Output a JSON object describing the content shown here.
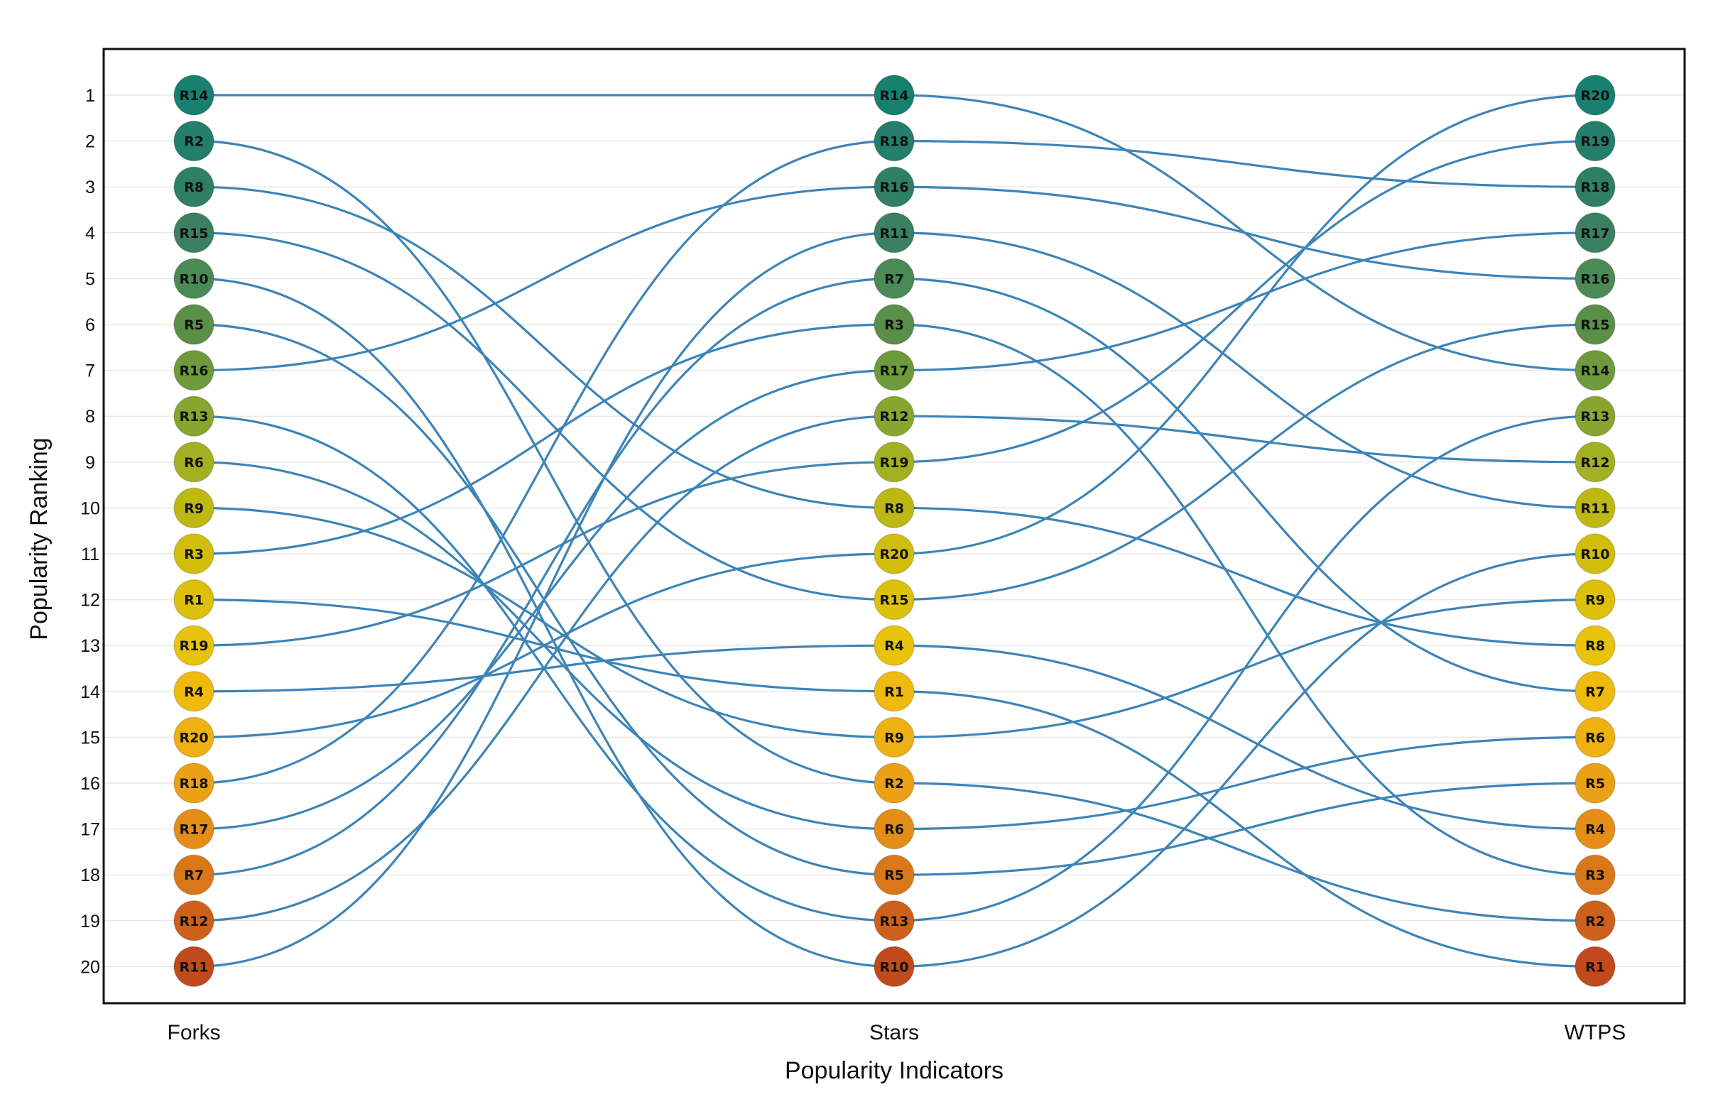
{
  "chart_data": {
    "type": "bump",
    "title": "",
    "xlabel": "Popularity Indicators",
    "ylabel": "Popularity Ranking",
    "categories": [
      "Forks",
      "Stars",
      "WTPS"
    ],
    "yticks": [
      "1",
      "2",
      "3",
      "4",
      "5",
      "6",
      "7",
      "8",
      "9",
      "10",
      "11",
      "12",
      "13",
      "14",
      "15",
      "16",
      "17",
      "18",
      "19",
      "20"
    ],
    "ylim": [
      1,
      20
    ],
    "y_reversed": true,
    "grid": true,
    "legend": "none",
    "rankings": {
      "Forks": [
        "R14",
        "R2",
        "R8",
        "R15",
        "R10",
        "R5",
        "R16",
        "R13",
        "R6",
        "R9",
        "R3",
        "R1",
        "R19",
        "R4",
        "R20",
        "R18",
        "R17",
        "R7",
        "R12",
        "R11"
      ],
      "Stars": [
        "R14",
        "R18",
        "R16",
        "R11",
        "R7",
        "R3",
        "R17",
        "R12",
        "R19",
        "R8",
        "R20",
        "R15",
        "R4",
        "R1",
        "R9",
        "R2",
        "R6",
        "R5",
        "R13",
        "R10"
      ],
      "WTPS": [
        "R20",
        "R19",
        "R18",
        "R17",
        "R16",
        "R15",
        "R14",
        "R13",
        "R12",
        "R11",
        "R10",
        "R9",
        "R8",
        "R7",
        "R6",
        "R5",
        "R4",
        "R3",
        "R2",
        "R1"
      ]
    },
    "rank_colors": [
      "#17806e",
      "#237f6c",
      "#2f7f66",
      "#3b8060",
      "#4a8a55",
      "#5a8f48",
      "#6e9a3c",
      "#87a52f",
      "#a3b022",
      "#bdb812",
      "#d1bd0c",
      "#dcc00a",
      "#e8c30c",
      "#eeba0e",
      "#efb012",
      "#eba116",
      "#e48e18",
      "#d9781a",
      "#cd611b",
      "#c04a1c"
    ],
    "link_color": "#3d84b8"
  }
}
